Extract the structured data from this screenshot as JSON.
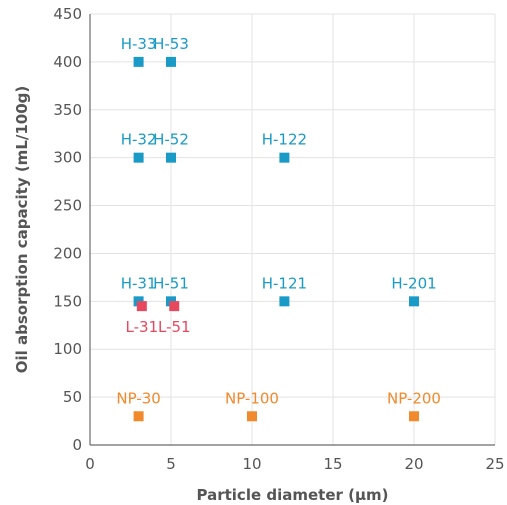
{
  "chart_data": {
    "type": "scatter",
    "xlabel": "Particle diameter (µm)",
    "ylabel": "Oil absorption capacity (mL/100g)",
    "xlim": [
      0,
      25
    ],
    "ylim": [
      0,
      450
    ],
    "xticks": [
      0,
      5,
      10,
      15,
      20,
      25
    ],
    "yticks": [
      0,
      50,
      100,
      150,
      200,
      250,
      300,
      350,
      400,
      450
    ],
    "grid": true,
    "colors": {
      "H": "#1a9bc7",
      "L": "#e8485e",
      "NP": "#f08a2c"
    },
    "series": [
      {
        "group": "H",
        "color": "#1a9bc7",
        "points": [
          {
            "label": "H-33",
            "x": 3,
            "y": 400
          },
          {
            "label": "H-53",
            "x": 5,
            "y": 400
          },
          {
            "label": "H-32",
            "x": 3,
            "y": 300
          },
          {
            "label": "H-52",
            "x": 5,
            "y": 300
          },
          {
            "label": "H-122",
            "x": 12,
            "y": 300
          },
          {
            "label": "H-31",
            "x": 3,
            "y": 150
          },
          {
            "label": "H-51",
            "x": 5,
            "y": 150
          },
          {
            "label": "H-121",
            "x": 12,
            "y": 150
          },
          {
            "label": "H-201",
            "x": 20,
            "y": 150
          }
        ]
      },
      {
        "group": "L",
        "color": "#e8485e",
        "points": [
          {
            "label": "L-31",
            "x": 3.2,
            "y": 145
          },
          {
            "label": "L-51",
            "x": 5.2,
            "y": 145
          }
        ]
      },
      {
        "group": "NP",
        "color": "#f08a2c",
        "points": [
          {
            "label": "NP-30",
            "x": 3,
            "y": 30
          },
          {
            "label": "NP-100",
            "x": 10,
            "y": 30
          },
          {
            "label": "NP-200",
            "x": 20,
            "y": 30
          }
        ]
      }
    ]
  }
}
